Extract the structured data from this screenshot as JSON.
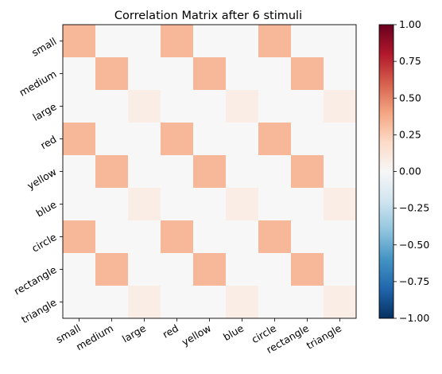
{
  "chart_data": {
    "type": "heatmap",
    "title": "Correlation Matrix after 6 stimuli",
    "xlabel": "",
    "ylabel": "",
    "row_labels": [
      "small",
      "medium",
      "large",
      "red",
      "yellow",
      "blue",
      "circle",
      "rectangle",
      "triangle"
    ],
    "col_labels": [
      "small",
      "medium",
      "large",
      "red",
      "yellow",
      "blue",
      "circle",
      "rectangle",
      "triangle"
    ],
    "values": [
      [
        0.33,
        0.0,
        0.0,
        0.33,
        0.0,
        0.0,
        0.33,
        0.0,
        0.0
      ],
      [
        0.0,
        0.33,
        0.0,
        0.0,
        0.33,
        0.0,
        0.0,
        0.33,
        0.0
      ],
      [
        0.0,
        0.0,
        0.07,
        0.0,
        0.0,
        0.07,
        0.0,
        0.0,
        0.07
      ],
      [
        0.33,
        0.0,
        0.0,
        0.33,
        0.0,
        0.0,
        0.33,
        0.0,
        0.0
      ],
      [
        0.0,
        0.33,
        0.0,
        0.0,
        0.33,
        0.0,
        0.0,
        0.33,
        0.0
      ],
      [
        0.0,
        0.0,
        0.07,
        0.0,
        0.0,
        0.07,
        0.0,
        0.0,
        0.07
      ],
      [
        0.33,
        0.0,
        0.0,
        0.33,
        0.0,
        0.0,
        0.33,
        0.0,
        0.0
      ],
      [
        0.0,
        0.33,
        0.0,
        0.0,
        0.33,
        0.0,
        0.0,
        0.33,
        0.0
      ],
      [
        0.0,
        0.0,
        0.07,
        0.0,
        0.0,
        0.07,
        0.0,
        0.0,
        0.07
      ]
    ],
    "colormap": "RdBu_r",
    "colorbar": {
      "range": [
        -1.0,
        1.0
      ],
      "ticks": [
        1.0,
        0.75,
        0.5,
        0.25,
        0.0,
        -0.25,
        -0.5,
        -0.75,
        -1.0
      ],
      "tick_labels": [
        "1.00",
        "0.75",
        "0.50",
        "0.25",
        "0.00",
        "−0.25",
        "−0.50",
        "−0.75",
        "−1.00"
      ]
    },
    "grid": false,
    "legend": "none"
  }
}
